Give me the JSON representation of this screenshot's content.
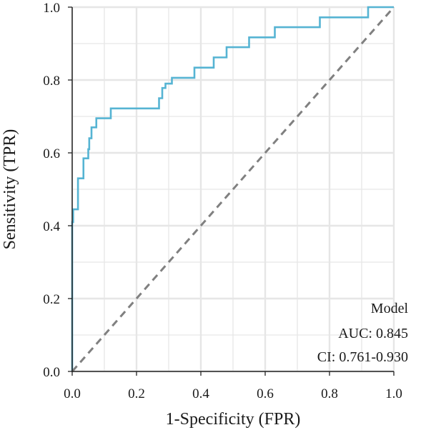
{
  "chart_data": {
    "type": "line",
    "title": "",
    "xlabel": "1-Specificity (FPR)",
    "ylabel": "Sensitivity (TPR)",
    "xlim": [
      0,
      1
    ],
    "ylim": [
      0,
      1
    ],
    "x_ticks": [
      "0.0",
      "0.2",
      "0.4",
      "0.6",
      "0.8",
      "1.0"
    ],
    "y_ticks": [
      "0.0",
      "0.2",
      "0.4",
      "0.6",
      "0.8",
      "1.0"
    ],
    "grid": true,
    "annotations": [
      "Model",
      "AUC: 0.845",
      "CI: 0.761-0.930"
    ],
    "annotation_placement": "bottom-right",
    "colors": {
      "roc": "#56B4D3",
      "diagonal": "#808080",
      "grid": "#e6e6e6"
    },
    "series": [
      {
        "style": "roc-curve",
        "x": [
          0,
          0,
          0.003,
          0.003,
          0.018,
          0.018,
          0.035,
          0.035,
          0.05,
          0.05,
          0.053,
          0.053,
          0.06,
          0.06,
          0.075,
          0.075,
          0.12,
          0.12,
          0.27,
          0.27,
          0.28,
          0.28,
          0.29,
          0.29,
          0.31,
          0.31,
          0.38,
          0.38,
          0.44,
          0.44,
          0.48,
          0.48,
          0.55,
          0.55,
          0.63,
          0.63,
          0.77,
          0.77,
          0.92,
          0.92,
          1.0
        ],
        "y": [
          0,
          0.41,
          0.41,
          0.445,
          0.445,
          0.53,
          0.53,
          0.585,
          0.585,
          0.61,
          0.61,
          0.64,
          0.64,
          0.67,
          0.67,
          0.695,
          0.695,
          0.722,
          0.722,
          0.75,
          0.75,
          0.778,
          0.778,
          0.79,
          0.79,
          0.806,
          0.806,
          0.834,
          0.834,
          0.862,
          0.862,
          0.89,
          0.89,
          0.917,
          0.917,
          0.945,
          0.945,
          0.972,
          0.972,
          1.0,
          1.0
        ]
      },
      {
        "style": "diagonal-reference",
        "x": [
          0,
          1
        ],
        "y": [
          0,
          1
        ]
      }
    ]
  }
}
